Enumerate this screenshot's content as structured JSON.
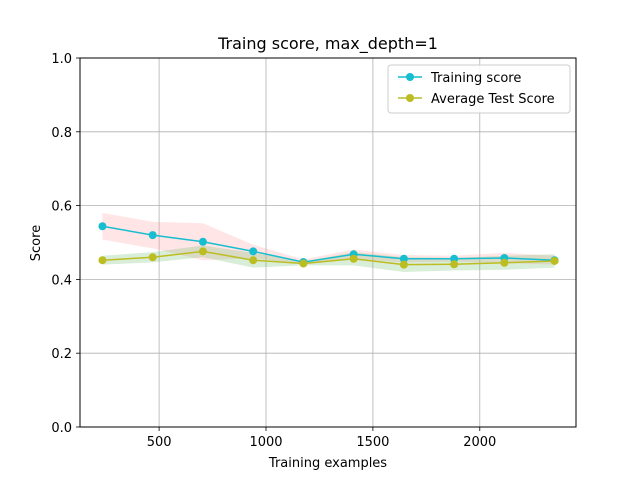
{
  "chart_data": {
    "type": "line",
    "title": "Traing score, max_depth=1",
    "xlabel": "Training examples",
    "ylabel": "Score",
    "xlim": [
      130,
      2450
    ],
    "ylim": [
      0,
      1.0
    ],
    "xticks": [
      500,
      1000,
      1500,
      2000
    ],
    "yticks": [
      0.0,
      0.2,
      0.4,
      0.6,
      0.8,
      1.0
    ],
    "xtick_labels": [
      "500",
      "1000",
      "1500",
      "2000"
    ],
    "ytick_labels": [
      "0.0",
      "0.2",
      "0.4",
      "0.6",
      "0.8",
      "1.0"
    ],
    "grid": true,
    "legend_position": "upper right",
    "x": [
      235,
      470,
      705,
      940,
      1175,
      1410,
      1645,
      1880,
      2115,
      2350
    ],
    "series": [
      {
        "name": "Training score",
        "color": "#17becf",
        "values": [
          0.544,
          0.52,
          0.502,
          0.476,
          0.447,
          0.468,
          0.456,
          0.456,
          0.458,
          0.452
        ],
        "band_lower": [
          0.508,
          0.484,
          0.452,
          0.458,
          0.44,
          0.455,
          0.446,
          0.448,
          0.444,
          0.44
        ],
        "band_upper": [
          0.58,
          0.556,
          0.552,
          0.494,
          0.454,
          0.481,
          0.466,
          0.464,
          0.472,
          0.464
        ],
        "band_color": "#ff9999"
      },
      {
        "name": "Average Test Score",
        "color": "#bcbd22",
        "values": [
          0.452,
          0.46,
          0.476,
          0.452,
          0.443,
          0.456,
          0.44,
          0.441,
          0.445,
          0.45
        ],
        "band_lower": [
          0.44,
          0.446,
          0.46,
          0.432,
          0.438,
          0.438,
          0.42,
          0.424,
          0.426,
          0.432
        ],
        "band_upper": [
          0.464,
          0.474,
          0.492,
          0.472,
          0.448,
          0.474,
          0.46,
          0.458,
          0.464,
          0.468
        ],
        "band_color": "#66bb66"
      }
    ]
  }
}
